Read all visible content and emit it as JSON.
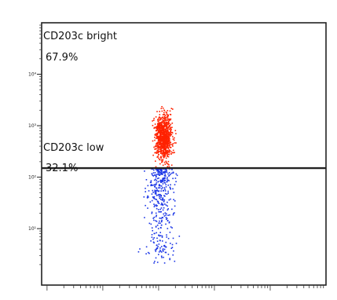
{
  "chart_data": {
    "type": "scatter",
    "title": "",
    "xlabel": "",
    "ylabel": "",
    "x_scale": "log",
    "y_scale": "log",
    "xlim": [
      0.8,
      100000
    ],
    "ylim": [
      0.8,
      100000
    ],
    "y_ticks": [
      {
        "value": 10000,
        "label": "10⁴"
      },
      {
        "value": 1000,
        "label": "10³"
      },
      {
        "value": 100,
        "label": "10²"
      },
      {
        "value": 10,
        "label": "10¹"
      }
    ],
    "gate_threshold_y": 150,
    "gates": [
      {
        "name": "CD203c bright",
        "percent": "67.9%",
        "color": "#ff2200"
      },
      {
        "name": "CD203c low",
        "percent": "32.1%",
        "color": "#1a35e6"
      }
    ],
    "series": [
      {
        "name": "CD203c bright",
        "color": "#ff2200",
        "cluster": {
          "x_center": 120,
          "x_spread_log": 0.075,
          "y_min": 150,
          "y_max": 2500,
          "y_peak": 600,
          "count": 900
        }
      },
      {
        "name": "CD203c low",
        "color": "#1a35e6",
        "cluster": {
          "x_center": 105,
          "x_spread_log": 0.11,
          "y_min": 2.2,
          "y_max": 150,
          "y_peak": 110,
          "count": 420
        }
      }
    ]
  }
}
